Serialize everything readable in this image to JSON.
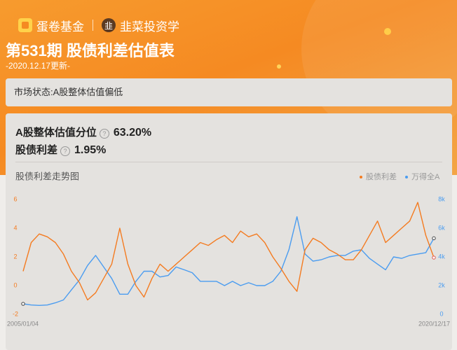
{
  "header": {
    "brand": "蛋卷基金",
    "partner_icon": "韭",
    "partner": "韭菜投资学",
    "title": "第531期 股债利差估值表",
    "subtitle": "-2020.12.17更新-"
  },
  "status": "市场状态:A股整体估值偏低",
  "metrics": [
    {
      "label": "A股整体估值分位",
      "value": "63.20%"
    },
    {
      "label": "股债利差",
      "value": "1.95%"
    }
  ],
  "help_icon": "?",
  "chart_data": {
    "type": "line",
    "title": "股债利差走势图",
    "categories": [
      "2005/01/04",
      null,
      null,
      null,
      null,
      null,
      null,
      null,
      null,
      null,
      null,
      null,
      null,
      null,
      null,
      null,
      null,
      null,
      null,
      null,
      null,
      null,
      null,
      null,
      null,
      null,
      null,
      null,
      null,
      null,
      null,
      null,
      null,
      null,
      null,
      null,
      null,
      null,
      null,
      null,
      null,
      null,
      null,
      null,
      null,
      null,
      null,
      null,
      null,
      null,
      null,
      "2020/12/17"
    ],
    "series": [
      {
        "name": "股债利差",
        "color": "#f47b20",
        "axis": "y",
        "values": [
          1.0,
          3.0,
          3.6,
          3.4,
          3.0,
          2.2,
          1.0,
          0.2,
          -1.0,
          -0.5,
          0.5,
          1.5,
          4.0,
          1.5,
          0.0,
          -0.8,
          0.5,
          1.5,
          1.0,
          1.5,
          2.0,
          2.5,
          3.0,
          2.8,
          3.2,
          3.5,
          3.0,
          3.8,
          3.4,
          3.6,
          3.0,
          2.0,
          1.2,
          0.3,
          -0.4,
          2.5,
          3.3,
          3.0,
          2.5,
          2.2,
          1.8,
          1.8,
          2.5,
          3.5,
          4.5,
          3.0,
          3.5,
          4.0,
          4.5,
          5.8,
          3.5,
          1.95
        ]
      },
      {
        "name": "万得全A",
        "color": "#4a9cf0",
        "axis": "y2",
        "values": [
          730,
          650,
          620,
          650,
          800,
          1000,
          1700,
          2400,
          3400,
          4100,
          3300,
          2500,
          1400,
          1400,
          2300,
          3000,
          3000,
          2600,
          2700,
          3300,
          3100,
          2900,
          2300,
          2300,
          2300,
          2000,
          2300,
          2000,
          2200,
          2000,
          2000,
          2300,
          3000,
          4500,
          6800,
          4200,
          3700,
          3800,
          4000,
          4100,
          4100,
          4400,
          4500,
          3900,
          3500,
          3100,
          4000,
          3900,
          4100,
          4200,
          4300,
          5300
        ]
      }
    ],
    "ylim": [
      -2,
      6
    ],
    "yticks": [
      -2,
      0,
      2,
      4,
      6
    ],
    "y2lim": [
      0,
      8000
    ],
    "y2ticks": [
      0,
      {
        "value": 2000,
        "label": "2k"
      },
      {
        "value": 4000,
        "label": "4k"
      },
      {
        "value": 6000,
        "label": "6k"
      },
      {
        "value": 8000,
        "label": "8k"
      }
    ],
    "grid": false,
    "legend": "top-right"
  }
}
